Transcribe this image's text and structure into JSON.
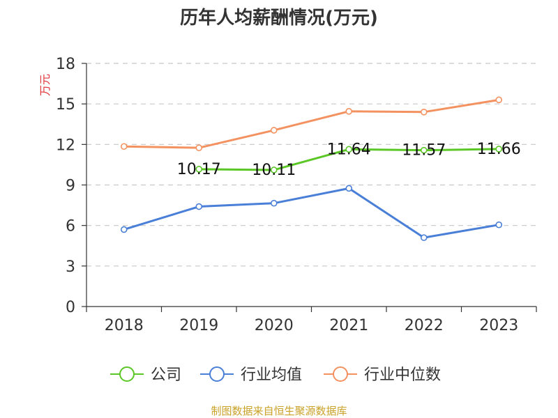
{
  "chart_data": {
    "type": "line",
    "title": "历年人均薪酬情况(万元)",
    "ylabel": "万元",
    "xlabel": "",
    "categories": [
      "2018",
      "2019",
      "2020",
      "2021",
      "2022",
      "2023"
    ],
    "ylim": [
      0,
      18
    ],
    "yticks": [
      0,
      3,
      6,
      9,
      12,
      15,
      18
    ],
    "grid": true,
    "legend_position": "bottom",
    "series": [
      {
        "name": "公司",
        "color": "#5bc726",
        "values": [
          null,
          10.17,
          10.11,
          11.64,
          11.57,
          11.66
        ],
        "labels": [
          "",
          "10.17",
          "10.11",
          "11.64",
          "11.57",
          "11.66"
        ]
      },
      {
        "name": "行业均值",
        "color": "#4a7fd8",
        "values": [
          5.7,
          7.4,
          7.65,
          8.75,
          5.1,
          6.05
        ]
      },
      {
        "name": "行业中位数",
        "color": "#f39260",
        "values": [
          11.85,
          11.75,
          13.05,
          14.45,
          14.4,
          15.3
        ]
      }
    ],
    "source": "制图数据来自恒生聚源数据库",
    "source_color": "#c9a227",
    "ylabel_color": "#e0343a"
  }
}
